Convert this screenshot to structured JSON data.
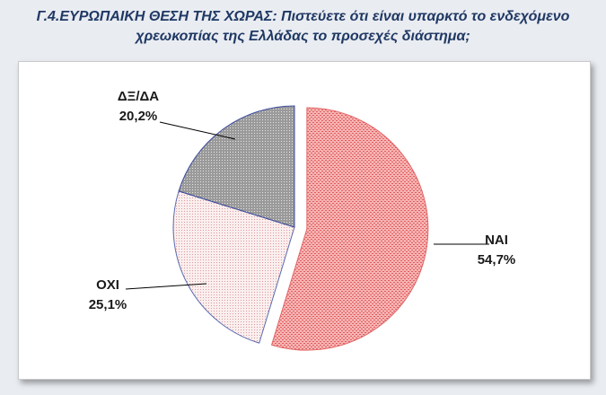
{
  "title_line1": "Γ.4.ΕΥΡΩΠΑΙΚΗ ΘΕΣΗ ΤΗΣ ΧΩΡΑΣ: Πιστεύετε ότι είναι υπαρκτό το ενδεχόμενο",
  "title_line2": "χρεωκοπίας της Ελλάδας το προσεχές διάστημα;",
  "chart_data": {
    "type": "pie",
    "title": "Γ.4.ΕΥΡΩΠΑΙΚΗ ΘΕΣΗ ΤΗΣ ΧΩΡΑΣ: Πιστεύετε ότι είναι υπαρκτό το ενδεχόμενο χρεωκοπίας της Ελλάδας το προσεχές διάστημα;",
    "slices": [
      {
        "label": "ΝΑΙ",
        "value": 54.7,
        "value_label": "54,7%",
        "color": "#f08080",
        "stroke": "#e06666"
      },
      {
        "label": "ΟΧΙ",
        "value": 25.1,
        "value_label": "25,1%",
        "color": "#f6dede",
        "stroke": "#5b6cb0"
      },
      {
        "label": "ΔΞ/ΔΑ",
        "value": 20.2,
        "value_label": "20,2%",
        "color": "#8a8a8a",
        "stroke": "#3b4a9c"
      }
    ],
    "start_angle_deg": 0,
    "exploded": "ΝΑΙ",
    "legend": "none"
  }
}
